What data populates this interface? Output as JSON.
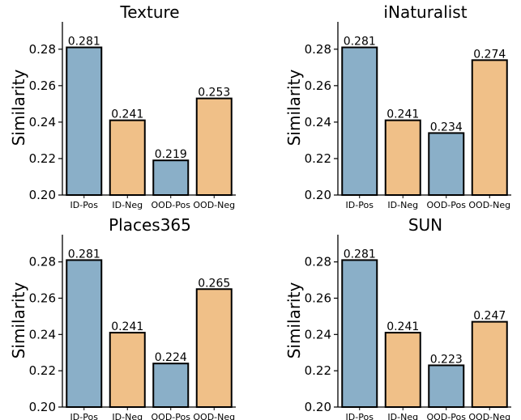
{
  "colors": {
    "pos": "#8aafc8",
    "neg": "#f0c088",
    "edge": "#000000"
  },
  "chart_data": [
    {
      "type": "bar",
      "title": "Texture",
      "ylabel": "Similarity",
      "categories": [
        "ID-Pos",
        "ID-Neg",
        "OOD-Pos",
        "OOD-Neg"
      ],
      "values": [
        0.281,
        0.241,
        0.219,
        0.253
      ],
      "labels": [
        "0.281",
        "0.241",
        "0.219",
        "0.253"
      ],
      "bar_colors": [
        "#8aafc8",
        "#f0c088",
        "#8aafc8",
        "#f0c088"
      ],
      "ylim": [
        0.2,
        0.295
      ],
      "yticks": [
        "0.20",
        "0.22",
        "0.24",
        "0.26",
        "0.28"
      ]
    },
    {
      "type": "bar",
      "title": "iNaturalist",
      "ylabel": "Similarity",
      "categories": [
        "ID-Pos",
        "ID-Neg",
        "OOD-Pos",
        "OOD-Neg"
      ],
      "values": [
        0.281,
        0.241,
        0.234,
        0.274
      ],
      "labels": [
        "0.281",
        "0.241",
        "0.234",
        "0.274"
      ],
      "bar_colors": [
        "#8aafc8",
        "#f0c088",
        "#8aafc8",
        "#f0c088"
      ],
      "ylim": [
        0.2,
        0.295
      ],
      "yticks": [
        "0.20",
        "0.22",
        "0.24",
        "0.26",
        "0.28"
      ]
    },
    {
      "type": "bar",
      "title": "Places365",
      "ylabel": "Similarity",
      "categories": [
        "ID-Pos",
        "ID-Neg",
        "OOD-Pos",
        "OOD-Neg"
      ],
      "values": [
        0.281,
        0.241,
        0.224,
        0.265
      ],
      "labels": [
        "0.281",
        "0.241",
        "0.224",
        "0.265"
      ],
      "bar_colors": [
        "#8aafc8",
        "#f0c088",
        "#8aafc8",
        "#f0c088"
      ],
      "ylim": [
        0.2,
        0.295
      ],
      "yticks": [
        "0.20",
        "0.22",
        "0.24",
        "0.26",
        "0.28"
      ]
    },
    {
      "type": "bar",
      "title": "SUN",
      "ylabel": "Similarity",
      "categories": [
        "ID-Pos",
        "ID-Neg",
        "OOD-Pos",
        "OOD-Neg"
      ],
      "values": [
        0.281,
        0.241,
        0.223,
        0.247
      ],
      "labels": [
        "0.281",
        "0.241",
        "0.223",
        "0.247"
      ],
      "bar_colors": [
        "#8aafc8",
        "#f0c088",
        "#8aafc8",
        "#f0c088"
      ],
      "ylim": [
        0.2,
        0.295
      ],
      "yticks": [
        "0.20",
        "0.22",
        "0.24",
        "0.26",
        "0.28"
      ]
    }
  ]
}
